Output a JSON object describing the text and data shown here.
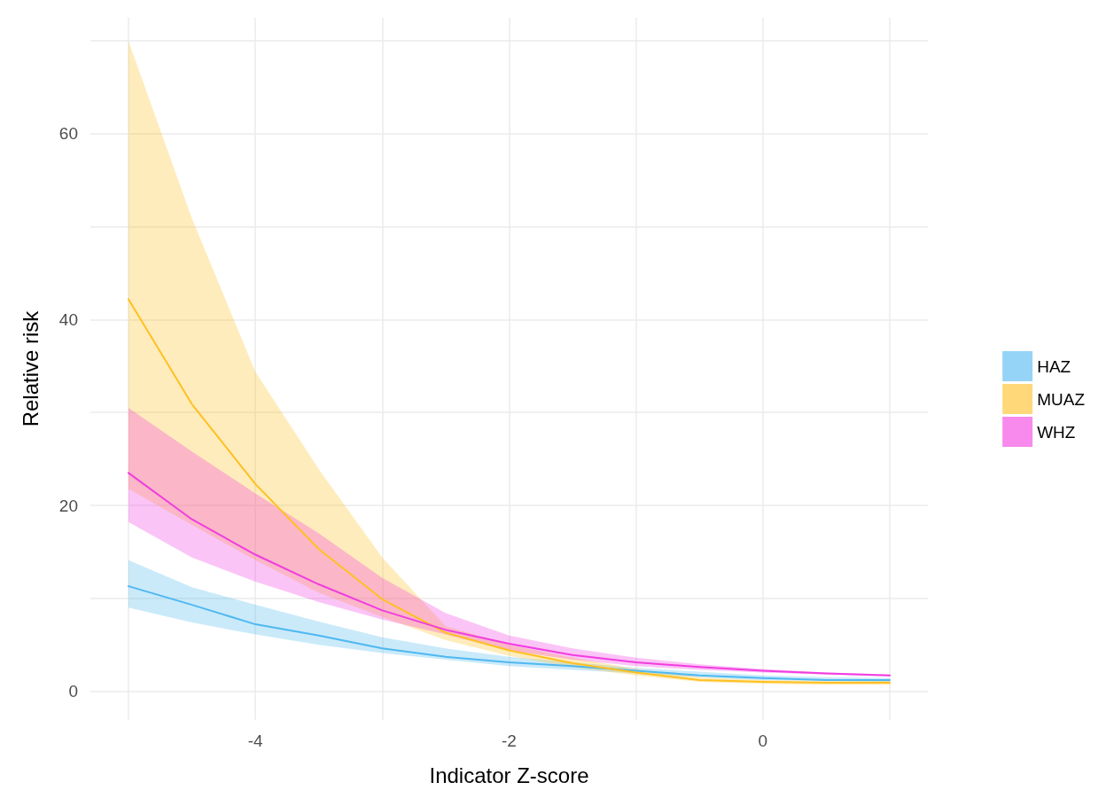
{
  "chart_data": {
    "type": "line",
    "xlabel": "Indicator Z-score",
    "ylabel": "Relative risk",
    "xlim": [
      -5.3,
      1.3
    ],
    "ylim": [
      -3.1,
      72.5
    ],
    "xticks": [
      {
        "value": -5,
        "label": null
      },
      -4,
      {
        "value": -3,
        "label": null
      },
      -2,
      {
        "value": -1,
        "label": null
      },
      0,
      {
        "value": 1,
        "label": null
      }
    ],
    "yticks": [
      0,
      {
        "value": 10,
        "label": null
      },
      20,
      {
        "value": 30,
        "label": null
      },
      40,
      {
        "value": 50,
        "label": null
      },
      60,
      {
        "value": 70,
        "label": null
      }
    ],
    "grid": true,
    "legend": "right",
    "marker": "none",
    "line_style": "solid",
    "x": [
      -5,
      -4.5,
      -4,
      -3.5,
      -3,
      -2.5,
      -2,
      -1.5,
      -1,
      -0.5,
      0,
      0.5,
      1
    ],
    "series": [
      {
        "name": "HAZ",
        "color": "#4fb8f0",
        "values": [
          11.3,
          9.3,
          7.2,
          6.0,
          4.6,
          3.7,
          3.1,
          2.7,
          2.2,
          1.7,
          1.4,
          1.2,
          1.2
        ],
        "upper": [
          14.1,
          11.2,
          9.3,
          7.5,
          5.8,
          4.6,
          3.7,
          3.1,
          2.5,
          2.1,
          1.7,
          1.5,
          1.4
        ],
        "lower": [
          9.0,
          7.4,
          6.1,
          5.0,
          4.1,
          3.4,
          2.7,
          2.3,
          1.9,
          1.5,
          1.2,
          1.1,
          1.0
        ]
      },
      {
        "name": "MUAZ",
        "color": "#ffc020",
        "values": [
          42.2,
          30.9,
          22.3,
          15.3,
          9.9,
          6.3,
          4.4,
          3.0,
          2.0,
          1.2,
          1.0,
          0.9,
          0.9
        ],
        "upper": [
          70,
          50.9,
          34.4,
          23.9,
          14.4,
          7.0,
          5.0,
          3.6,
          2.4,
          1.5,
          1.2,
          1.1,
          1.1
        ],
        "lower": [
          21.8,
          17.9,
          14.1,
          10.6,
          8.0,
          5.5,
          3.8,
          2.6,
          1.7,
          1.0,
          0.8,
          0.7,
          0.7
        ]
      },
      {
        "name": "WHZ",
        "color": "#f23ce0",
        "values": [
          23.5,
          18.5,
          14.7,
          11.5,
          8.7,
          6.6,
          5.1,
          3.9,
          3.1,
          2.6,
          2.2,
          1.9,
          1.7
        ],
        "upper": [
          30.5,
          25.8,
          21.3,
          17.0,
          12.2,
          8.4,
          6.0,
          4.6,
          3.6,
          2.9,
          2.4,
          2.0,
          1.8
        ],
        "lower": [
          18.2,
          14.4,
          11.8,
          9.6,
          7.7,
          6.1,
          4.4,
          3.4,
          2.7,
          2.3,
          2.0,
          1.8,
          1.6
        ]
      }
    ]
  }
}
